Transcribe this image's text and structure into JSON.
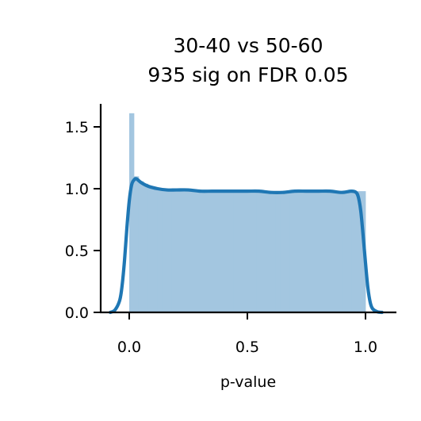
{
  "chart_data": {
    "type": "bar",
    "title": [
      "30-40 vs 50-60",
      "935 sig on FDR 0.05"
    ],
    "xlabel": "p-value",
    "ylabel": "",
    "xlim": [
      -0.12,
      1.13
    ],
    "ylim": [
      0,
      1.7
    ],
    "xticks": [
      0.0,
      0.5,
      1.0
    ],
    "xtick_labels": [
      "0.0",
      "0.5",
      "1.0"
    ],
    "yticks": [
      0.0,
      0.5,
      1.0,
      1.5
    ],
    "ytick_labels": [
      "0.0",
      "0.5",
      "1.0",
      "1.5"
    ],
    "grid": false,
    "legend": "none",
    "colors": {
      "histogram": "#a3c6e0",
      "density_line": "#1f77b4",
      "axis": "#000000"
    },
    "histogram": {
      "bin_edges": [
        0.0,
        0.02,
        0.04,
        0.06,
        0.08,
        0.1,
        0.12,
        0.14,
        0.16,
        0.18,
        0.2,
        0.22,
        0.24,
        0.26,
        0.28,
        0.3,
        0.32,
        0.34,
        0.36,
        0.38,
        0.4,
        0.42,
        0.44,
        0.46,
        0.48,
        0.5,
        0.52,
        0.54,
        0.56,
        0.58,
        0.6,
        0.62,
        0.64,
        0.66,
        0.68,
        0.7,
        0.72,
        0.74,
        0.76,
        0.78,
        0.8,
        0.82,
        0.84,
        0.86,
        0.88,
        0.9,
        0.92,
        0.94,
        0.96,
        0.98,
        1.0
      ],
      "values": [
        1.61,
        1.1,
        1.06,
        1.04,
        1.02,
        1.01,
        1.0,
        0.99,
        0.99,
        0.99,
        0.99,
        1.0,
        0.99,
        0.99,
        0.98,
        0.98,
        0.98,
        0.98,
        0.98,
        0.99,
        0.99,
        0.98,
        0.98,
        0.98,
        0.98,
        0.98,
        0.97,
        0.97,
        0.97,
        0.97,
        0.98,
        0.98,
        0.98,
        0.98,
        0.98,
        0.98,
        0.98,
        0.98,
        0.98,
        0.98,
        0.98,
        0.98,
        0.98,
        0.98,
        0.98,
        0.98,
        0.98,
        0.98,
        0.98,
        0.98
      ]
    },
    "density_curve": {
      "x": [
        -0.08,
        -0.06,
        -0.04,
        -0.03,
        -0.02,
        -0.01,
        0.0,
        0.01,
        0.02,
        0.03,
        0.05,
        0.08,
        0.12,
        0.16,
        0.2,
        0.25,
        0.3,
        0.35,
        0.4,
        0.45,
        0.5,
        0.55,
        0.6,
        0.65,
        0.7,
        0.75,
        0.8,
        0.85,
        0.9,
        0.94,
        0.96,
        0.97,
        0.98,
        0.99,
        1.0,
        1.01,
        1.02,
        1.03,
        1.05,
        1.07
      ],
      "y": [
        0.0,
        0.02,
        0.1,
        0.22,
        0.42,
        0.68,
        0.9,
        1.03,
        1.07,
        1.08,
        1.05,
        1.02,
        1.0,
        0.99,
        0.99,
        0.99,
        0.98,
        0.98,
        0.98,
        0.98,
        0.98,
        0.98,
        0.97,
        0.97,
        0.98,
        0.98,
        0.98,
        0.98,
        0.97,
        0.98,
        0.97,
        0.93,
        0.82,
        0.62,
        0.4,
        0.2,
        0.08,
        0.03,
        0.005,
        0.0
      ]
    }
  }
}
